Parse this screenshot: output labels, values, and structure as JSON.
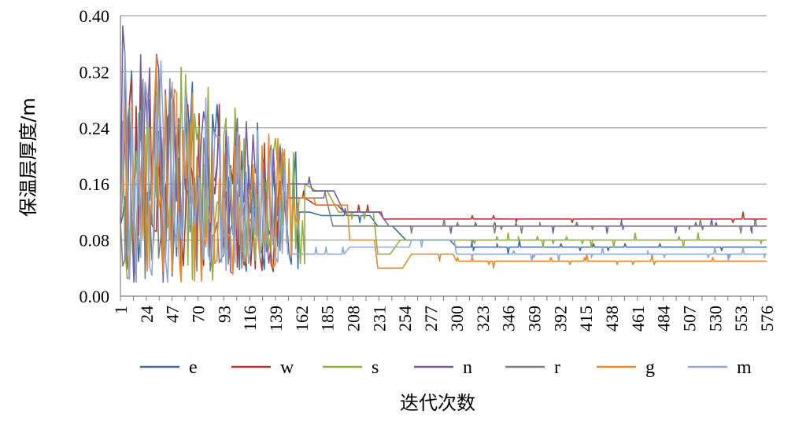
{
  "chart_data": {
    "type": "line",
    "title": "",
    "xlabel": "迭代次数",
    "ylabel": "保温层厚度/m",
    "ylim": [
      0,
      0.4
    ],
    "xlim": [
      1,
      576
    ],
    "yticks": [
      "0.00",
      "0.08",
      "0.16",
      "0.24",
      "0.32",
      "0.40"
    ],
    "yticks_values": [
      0,
      0.08,
      0.16,
      0.24,
      0.32,
      0.4
    ],
    "xticks": [
      "1",
      "24",
      "47",
      "70",
      "93",
      "116",
      "139",
      "162",
      "185",
      "208",
      "231",
      "254",
      "277",
      "300",
      "323",
      "346",
      "369",
      "392",
      "415",
      "438",
      "461",
      "484",
      "507",
      "530",
      "553",
      "576"
    ],
    "grid": true,
    "legend_position": "bottom",
    "series": [
      {
        "name": "e",
        "color": "#3c6ea6",
        "final": 0.07,
        "seed": 11,
        "noisy_until": 160,
        "steps": [
          [
            160,
            0.12
          ],
          [
            180,
            0.115
          ],
          [
            230,
            0.1
          ],
          [
            255,
            0.08
          ],
          [
            300,
            0.07
          ]
        ]
      },
      {
        "name": "w",
        "color": "#b03a2e",
        "final": 0.11,
        "seed": 23,
        "noisy_until": 150,
        "steps": [
          [
            150,
            0.14
          ],
          [
            175,
            0.13
          ],
          [
            200,
            0.12
          ],
          [
            235,
            0.11
          ],
          [
            300,
            0.11
          ]
        ]
      },
      {
        "name": "s",
        "color": "#8fb13d",
        "final": 0.08,
        "seed": 37,
        "noisy_until": 165,
        "steps": [
          [
            165,
            0.16
          ],
          [
            175,
            0.15
          ],
          [
            195,
            0.12
          ],
          [
            230,
            0.06
          ],
          [
            250,
            0.08
          ],
          [
            300,
            0.08
          ]
        ]
      },
      {
        "name": "n",
        "color": "#7a5ca6",
        "final": 0.1,
        "seed": 41,
        "noisy_until": 150,
        "steps": [
          [
            150,
            0.16
          ],
          [
            172,
            0.15
          ],
          [
            200,
            0.12
          ],
          [
            240,
            0.1
          ],
          [
            300,
            0.1
          ]
        ]
      },
      {
        "name": "r",
        "color": "#808080",
        "final": 0.1,
        "seed": 53,
        "noisy_until": 150,
        "steps": [
          [
            150,
            0.14
          ],
          [
            170,
            0.14
          ],
          [
            190,
            0.1
          ],
          [
            240,
            0.1
          ],
          [
            300,
            0.1
          ]
        ]
      },
      {
        "name": "g",
        "color": "#e68a2e",
        "final": 0.05,
        "seed": 67,
        "noisy_until": 160,
        "steps": [
          [
            160,
            0.14
          ],
          [
            175,
            0.13
          ],
          [
            205,
            0.08
          ],
          [
            230,
            0.04
          ],
          [
            260,
            0.06
          ],
          [
            300,
            0.05
          ]
        ]
      },
      {
        "name": "m",
        "color": "#8fa9d6",
        "final": 0.06,
        "seed": 79,
        "noisy_until": 150,
        "steps": [
          [
            150,
            0.06
          ],
          [
            185,
            0.06
          ],
          [
            205,
            0.07
          ],
          [
            260,
            0.08
          ],
          [
            300,
            0.06
          ]
        ]
      }
    ]
  }
}
